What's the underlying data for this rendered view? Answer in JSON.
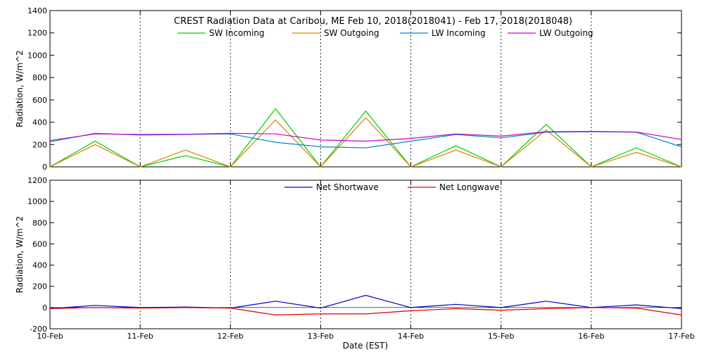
{
  "chart_data": [
    {
      "type": "line",
      "title": "CREST Radiation Data at Caribou, ME   Feb 10, 2018(2018041) - Feb 17, 2018(2018048)",
      "ylabel": "Radiation, W/m^2",
      "xlabel": "",
      "ylim": [
        0,
        1400
      ],
      "yticks": [
        "0",
        "200",
        "400",
        "600",
        "800",
        "1000",
        "1200",
        "1400"
      ],
      "xticks": [
        "10-Feb",
        "11-Feb",
        "12-Feb",
        "13-Feb",
        "14-Feb",
        "15-Feb",
        "16-Feb",
        "17-Feb"
      ],
      "x": [
        "10-Feb",
        "10-Feb 12:00",
        "11-Feb",
        "11-Feb 12:00",
        "12-Feb",
        "12-Feb 12:00",
        "13-Feb",
        "13-Feb 12:00",
        "14-Feb",
        "14-Feb 12:00",
        "15-Feb",
        "15-Feb 12:00",
        "16-Feb",
        "16-Feb 12:00",
        "17-Feb"
      ],
      "grid": true,
      "legend_position": "top",
      "series": [
        {
          "name": "SW Incoming",
          "color": "#00cc00",
          "values": [
            0,
            230,
            0,
            100,
            0,
            520,
            0,
            500,
            0,
            190,
            0,
            380,
            0,
            170,
            0
          ]
        },
        {
          "name": "SW Outgoing",
          "color": "#e08000",
          "values": [
            0,
            200,
            0,
            150,
            0,
            420,
            0,
            440,
            0,
            150,
            0,
            330,
            0,
            130,
            0
          ]
        },
        {
          "name": "LW Incoming",
          "color": "#0088cc",
          "values": [
            225,
            300,
            285,
            290,
            295,
            220,
            180,
            170,
            230,
            290,
            260,
            310,
            315,
            310,
            180
          ]
        },
        {
          "name": "LW Outgoing",
          "color": "#cc00cc",
          "values": [
            235,
            295,
            290,
            292,
            300,
            295,
            240,
            230,
            255,
            295,
            275,
            315,
            318,
            312,
            245
          ]
        }
      ]
    },
    {
      "type": "line",
      "title": "",
      "ylabel": "Radiation, W/m^2",
      "xlabel": "Date (EST)",
      "ylim": [
        -200,
        1200
      ],
      "yticks": [
        "-200",
        "0",
        "200",
        "400",
        "600",
        "800",
        "1000",
        "1200"
      ],
      "xticks": [
        "10-Feb",
        "11-Feb",
        "12-Feb",
        "13-Feb",
        "14-Feb",
        "15-Feb",
        "16-Feb",
        "17-Feb"
      ],
      "x": [
        "10-Feb",
        "10-Feb 12:00",
        "11-Feb",
        "11-Feb 12:00",
        "12-Feb",
        "12-Feb 12:00",
        "13-Feb",
        "13-Feb 12:00",
        "14-Feb",
        "14-Feb 12:00",
        "15-Feb",
        "15-Feb 12:00",
        "16-Feb",
        "16-Feb 12:00",
        "17-Feb"
      ],
      "grid": true,
      "legend_position": "top",
      "series": [
        {
          "name": "Net Shortwave",
          "color": "#0000cc",
          "values": [
            -10,
            20,
            0,
            5,
            -5,
            60,
            -5,
            115,
            0,
            30,
            0,
            60,
            0,
            25,
            -10
          ]
        },
        {
          "name": "Net Longwave",
          "color": "#dd0000",
          "values": [
            -10,
            0,
            -5,
            0,
            -5,
            -70,
            -60,
            -60,
            -30,
            -10,
            -25,
            -10,
            0,
            -5,
            -70
          ]
        }
      ]
    }
  ]
}
